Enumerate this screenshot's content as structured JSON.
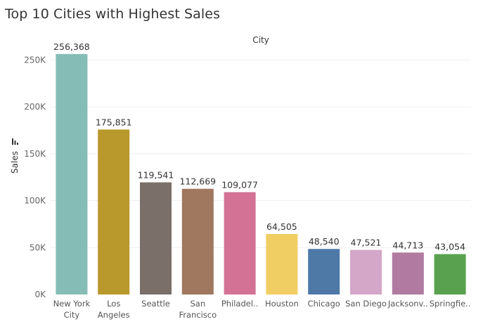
{
  "chart_data": {
    "type": "bar",
    "title": "Top 10 Cities with Highest Sales",
    "xlabel": "City",
    "ylabel": "Sales",
    "sort_icon": "sort-descending-icon",
    "categories": [
      [
        "New York",
        "City"
      ],
      [
        "Los",
        "Angeles"
      ],
      [
        "Seattle"
      ],
      [
        "San",
        "Francisco"
      ],
      [
        "Philadel.."
      ],
      [
        "Houston"
      ],
      [
        "Chicago"
      ],
      [
        "San Diego"
      ],
      [
        "Jacksonv.."
      ],
      [
        "Springfie.."
      ]
    ],
    "values": [
      256368,
      175851,
      119541,
      112669,
      109077,
      64505,
      48540,
      47521,
      44713,
      43054
    ],
    "data_labels": [
      "256,368",
      "175,851",
      "119,541",
      "112,669",
      "109,077",
      "64,505",
      "48,540",
      "47,521",
      "44,713",
      "43,054"
    ],
    "colors": [
      "#86bcb6",
      "#b9982c",
      "#7a6f69",
      "#a0775f",
      "#d37295",
      "#f1ce63",
      "#4e79a7",
      "#d4a6c8",
      "#b07aa1",
      "#59a14f"
    ],
    "yticks": [
      0,
      50000,
      100000,
      150000,
      200000,
      250000
    ],
    "ytick_labels": [
      "0K",
      "50K",
      "100K",
      "150K",
      "200K",
      "250K"
    ],
    "ylim": [
      0,
      260000
    ],
    "grid": true,
    "legend": "none"
  }
}
